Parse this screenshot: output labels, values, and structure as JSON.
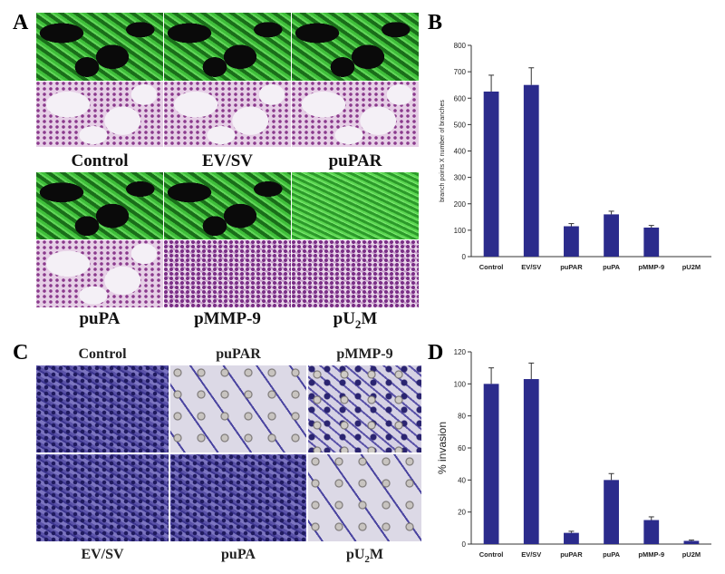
{
  "panels": {
    "a": {
      "letter": "A",
      "labels": [
        "Control",
        "EV/SV",
        "puPAR",
        "puPA",
        "pMMP-9"
      ],
      "last_label_base": "pU",
      "last_label_sub": "2",
      "last_label_tail": "M"
    },
    "b": {
      "letter": "B"
    },
    "c": {
      "letter": "C",
      "labels": [
        "Control",
        "puPAR",
        "pMMP-9",
        "EV/SV",
        "puPA"
      ],
      "last_label_base": "pU",
      "last_label_sub": "2",
      "last_label_tail": "M"
    },
    "d": {
      "letter": "D"
    }
  },
  "colors": {
    "bar": "#2b2b8c",
    "axis": "#333333"
  },
  "chart_data": [
    {
      "type": "bar",
      "panel": "B",
      "categories": [
        "Control",
        "EV/SV",
        "puPAR",
        "puPA",
        "pMMP-9",
        "pU2M"
      ],
      "values": [
        625,
        650,
        115,
        160,
        110,
        0
      ],
      "errors": [
        62,
        65,
        10,
        12,
        8,
        0
      ],
      "title": "",
      "xlabel": "",
      "ylabel": "branch points X number of branches",
      "ylim": [
        0,
        800
      ],
      "yticks": [
        0,
        100,
        200,
        300,
        400,
        500,
        600,
        700,
        800
      ],
      "grid": false,
      "legend": "none"
    },
    {
      "type": "bar",
      "panel": "D",
      "categories": [
        "Control",
        "EV/SV",
        "puPAR",
        "puPA",
        "pMMP-9",
        "pU2M"
      ],
      "values": [
        100,
        103,
        7,
        40,
        15,
        2
      ],
      "errors": [
        10,
        10,
        1,
        4,
        2,
        0.5
      ],
      "title": "",
      "xlabel": "",
      "ylabel": "% invasion",
      "ylim": [
        0,
        120
      ],
      "yticks": [
        0,
        20,
        40,
        60,
        80,
        100,
        120
      ],
      "grid": false,
      "legend": "none"
    }
  ]
}
